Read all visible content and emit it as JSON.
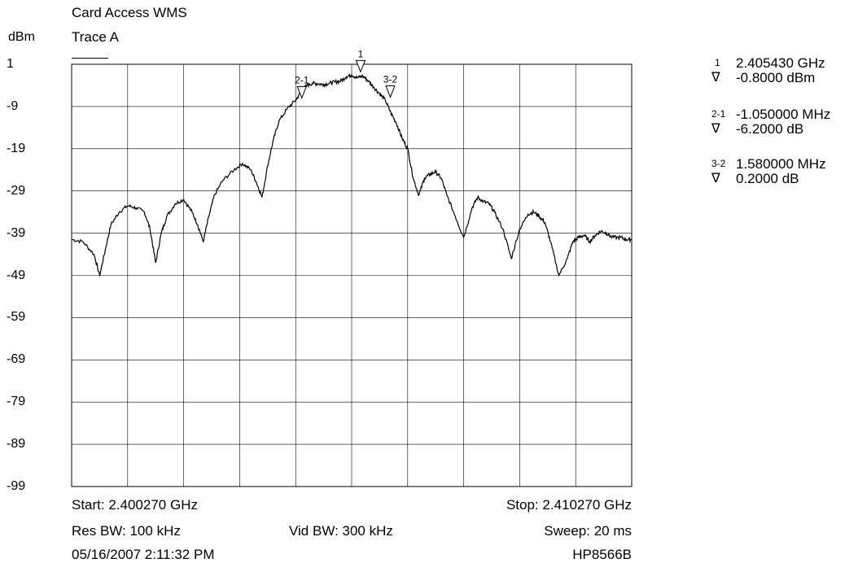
{
  "header": {
    "title": "Card Access WMS",
    "yunit": "dBm",
    "trace_label": "Trace A"
  },
  "chart_data": {
    "type": "line",
    "title": "Card Access WMS",
    "ylabel": "dBm",
    "ylim": [
      -99,
      1
    ],
    "y_ticks": [
      "1",
      "-9",
      "-19",
      "-29",
      "-39",
      "-49",
      "-59",
      "-69",
      "-79",
      "-89",
      "-99"
    ],
    "xlim": [
      2.40027,
      2.41027
    ],
    "x_unit": "GHz",
    "grid": true,
    "series": [
      {
        "name": "Trace A",
        "x": [
          2.40027,
          2.40047,
          2.40067,
          2.40077,
          2.40087,
          2.40097,
          2.40112,
          2.40127,
          2.40142,
          2.40157,
          2.40167,
          2.40177,
          2.40187,
          2.40197,
          2.40212,
          2.40227,
          2.40242,
          2.40252,
          2.40262,
          2.40272,
          2.40282,
          2.40297,
          2.40317,
          2.40332,
          2.40347,
          2.40357,
          2.40367,
          2.40377,
          2.40387,
          2.40397,
          2.40412,
          2.40427,
          2.40437,
          2.40447,
          2.40457,
          2.40467,
          2.40477,
          2.40487,
          2.40497,
          2.40507,
          2.40517,
          2.40527,
          2.40537,
          2.40547,
          2.40557,
          2.40567,
          2.40577,
          2.40587,
          2.40597,
          2.40607,
          2.40617,
          2.40627,
          2.40637,
          2.40647,
          2.40657,
          2.40667,
          2.40677,
          2.40687,
          2.40697,
          2.40712,
          2.40727,
          2.40742,
          2.40752,
          2.40762,
          2.40772,
          2.40782,
          2.40797,
          2.40812,
          2.40827,
          2.40842,
          2.40852,
          2.40862,
          2.40872,
          2.40882,
          2.40897,
          2.40912,
          2.40922,
          2.40932,
          2.40942,
          2.40952,
          2.40962,
          2.40972,
          2.40982,
          2.40992,
          2.41007,
          2.41017,
          2.41027
        ],
        "y": [
          -40.5,
          -41,
          -44,
          -49,
          -43,
          -37,
          -34,
          -32.5,
          -33,
          -34,
          -38,
          -46,
          -39,
          -35,
          -32,
          -31,
          -34,
          -37,
          -41,
          -35,
          -30,
          -26.5,
          -24,
          -22.5,
          -24,
          -27,
          -30.5,
          -23,
          -17,
          -12.5,
          -9.5,
          -7.5,
          -5.5,
          -4,
          -3.5,
          -3.6,
          -3.8,
          -3.5,
          -3.2,
          -3.0,
          -2.0,
          -1.5,
          -2.2,
          -1.8,
          -3.0,
          -4.5,
          -6.0,
          -7.5,
          -10.5,
          -13.0,
          -16.5,
          -19.0,
          -26,
          -30,
          -26,
          -25,
          -24.5,
          -26,
          -30,
          -35,
          -40,
          -33,
          -30.5,
          -31.5,
          -32,
          -34,
          -38,
          -45,
          -38,
          -34.5,
          -34,
          -35,
          -36.5,
          -41,
          -49,
          -45,
          -41,
          -40,
          -39.5,
          -41,
          -39.5,
          -38.5,
          -39,
          -40,
          -40,
          -40.5,
          -40.5
        ]
      }
    ],
    "markers": [
      {
        "id": "1",
        "x": 2.40543,
        "y": -0.8
      },
      {
        "id": "2-1",
        "x": 2.40438,
        "y": -7.0
      },
      {
        "id": "3-2",
        "x": 2.40596,
        "y": -6.8
      }
    ]
  },
  "marker_readout": [
    {
      "id": "1",
      "symbol": "∇",
      "freq": "2.405430 GHz",
      "value": "-0.8000 dBm"
    },
    {
      "id": "2-1",
      "symbol": "∇",
      "freq": "-1.050000 MHz",
      "value": "-6.2000 dB"
    },
    {
      "id": "3-2",
      "symbol": "∇",
      "freq": "1.580000 MHz",
      "value": "0.2000 dB"
    }
  ],
  "footer": {
    "start": "Start: 2.400270 GHz",
    "stop": "Stop: 2.410270 GHz",
    "res_bw": "Res BW: 100 kHz",
    "vid_bw": "Vid BW: 300 kHz",
    "sweep": "Sweep: 20 ms",
    "datetime": "05/16/2007 2:11:32 PM",
    "instrument": "HP8566B"
  }
}
